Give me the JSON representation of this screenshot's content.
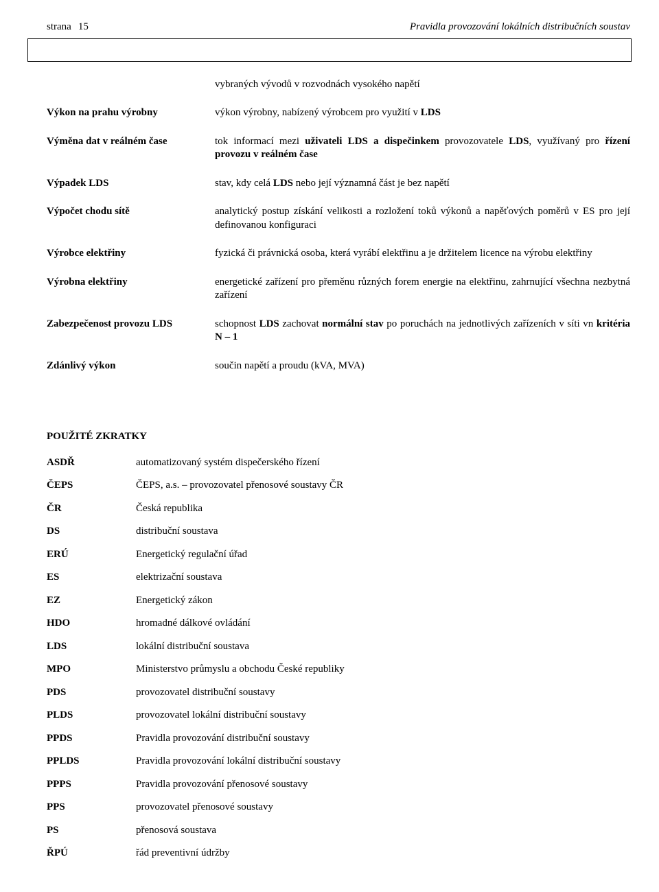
{
  "header": {
    "strana_label": "strana",
    "page_number": "15",
    "doc_title": "Pravidla provozování lokálních distribučních soustav"
  },
  "intro_line": "vybraných vývodů v rozvodnách vysokého napětí",
  "definitions": [
    {
      "term": "Výkon na prahu výrobny",
      "desc_parts": [
        "výkon výrobny, nabízený výrobcem pro využití v ",
        {
          "b": "LDS"
        }
      ]
    },
    {
      "term": "Výměna dat v reálném čase",
      "desc_parts": [
        "tok informací mezi ",
        {
          "b": "uživateli LDS a dispečinkem"
        },
        " provozovatele ",
        {
          "b": "LDS"
        },
        ", využívaný pro ",
        {
          "b": "řízení provozu v reálném čase"
        }
      ]
    },
    {
      "term": "Výpadek LDS",
      "desc_parts": [
        "stav, kdy celá ",
        {
          "b": "LDS"
        },
        " nebo její významná část je bez napětí"
      ]
    },
    {
      "term": "Výpočet chodu sítě",
      "desc_parts": [
        "analytický postup získání velikosti a rozložení toků výkonů a napěťových poměrů v ES pro její definovanou konfiguraci"
      ]
    },
    {
      "term": "Výrobce elektřiny",
      "desc_parts": [
        "fyzická či právnická osoba, která vyrábí elektřinu a je držitelem licence na výrobu elektřiny"
      ]
    },
    {
      "term": "Výrobna elektřiny",
      "desc_parts": [
        "energetické zařízení pro přeměnu různých forem energie na elektřinu, zahrnující všechna nezbytná zařízení"
      ]
    },
    {
      "term": "Zabezpečenost provozu LDS",
      "desc_parts": [
        "schopnost ",
        {
          "b": "LDS"
        },
        " zachovat ",
        {
          "b": "normální stav"
        },
        " po poruchách na jednotlivých zařízeních v síti vn ",
        {
          "b": "kritéria N – 1"
        }
      ]
    },
    {
      "term": "Zdánlivý výkon",
      "desc_parts": [
        "součin napětí a proudu (kVA, MVA)"
      ]
    }
  ],
  "abbr_title": "POUŽITÉ ZKRATKY",
  "abbreviations": [
    {
      "abbr": "ASDŘ",
      "exp": "automatizovaný systém dispečerského řízení"
    },
    {
      "abbr": "ČEPS",
      "exp": "ČEPS, a.s. – provozovatel přenosové soustavy ČR"
    },
    {
      "abbr": "ČR",
      "exp": "Česká republika"
    },
    {
      "abbr": "DS",
      "exp": "distribuční soustava"
    },
    {
      "abbr": "ERÚ",
      "exp": "Energetický regulační úřad"
    },
    {
      "abbr": "ES",
      "exp": "elektrizační soustava"
    },
    {
      "abbr": "EZ",
      "exp": "Energetický zákon"
    },
    {
      "abbr": "HDO",
      "exp": "hromadné dálkové ovládání"
    },
    {
      "abbr": "LDS",
      "exp": "lokální distribuční soustava"
    },
    {
      "abbr": "MPO",
      "exp": "Ministerstvo průmyslu a obchodu České republiky"
    },
    {
      "abbr": "PDS",
      "exp": "provozovatel distribuční soustavy"
    },
    {
      "abbr": "PLDS",
      "exp": "provozovatel lokální distribuční soustavy"
    },
    {
      "abbr": "PPDS",
      "exp": "Pravidla provozování distribuční soustavy"
    },
    {
      "abbr": "PPLDS",
      "exp": "Pravidla provozování lokální distribuční soustavy"
    },
    {
      "abbr": "PPPS",
      "exp": "Pravidla provozování přenosové soustavy"
    },
    {
      "abbr": "PPS",
      "exp": "provozovatel přenosové soustavy"
    },
    {
      "abbr": "PS",
      "exp": "přenosová soustava"
    },
    {
      "abbr": "ŘPÚ",
      "exp": "řád preventivní údržby"
    }
  ]
}
